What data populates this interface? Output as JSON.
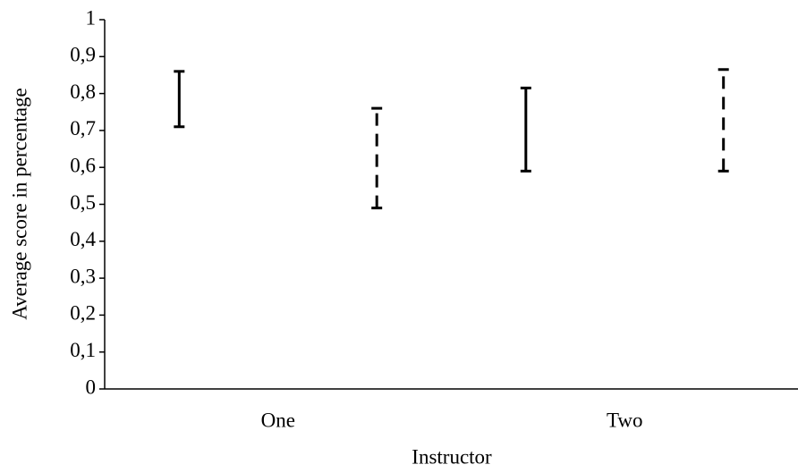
{
  "chart_data": {
    "type": "range",
    "x_label": "Instructor",
    "y_label": "Average score in percentage",
    "categories": [
      "One",
      "Two"
    ],
    "series": [
      {
        "color": "#000000",
        "line_style": "solid",
        "low": [
          0.71,
          0.59
        ],
        "high": [
          0.86,
          0.815
        ]
      },
      {
        "color": "#000000",
        "line_style": "dashed",
        "low": [
          0.49,
          0.59
        ],
        "high": [
          0.76,
          0.865
        ]
      }
    ],
    "ylim": [
      0,
      1
    ],
    "yticks": [
      0,
      {
        "value": 0.1,
        "label": "0,1"
      },
      {
        "value": 0.2,
        "label": "0,2"
      },
      {
        "value": 0.3,
        "label": "0,3"
      },
      {
        "value": 0.4,
        "label": "0,4"
      },
      {
        "value": 0.5,
        "label": "0,5"
      },
      {
        "value": 0.6,
        "label": "0,6"
      },
      {
        "value": 0.7,
        "label": "0,7"
      },
      {
        "value": 0.8,
        "label": "0,8"
      },
      {
        "value": 0.9,
        "label": "0,9"
      },
      1
    ],
    "grid": false
  }
}
